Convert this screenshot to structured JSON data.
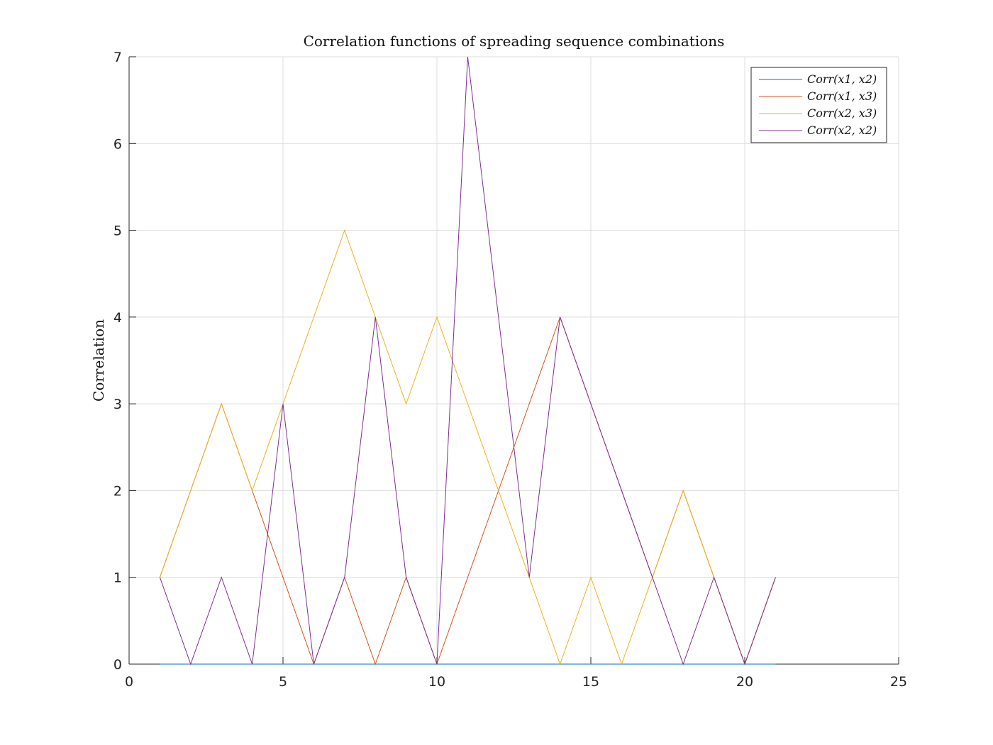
{
  "chart_data": {
    "type": "line",
    "title": "Correlation functions of spreading sequence combinations",
    "xlabel": "",
    "ylabel": "Correlation",
    "xlim": [
      0,
      25
    ],
    "ylim": [
      0,
      7
    ],
    "xticks": [
      0,
      5,
      10,
      15,
      20,
      25
    ],
    "yticks": [
      0,
      1,
      2,
      3,
      4,
      5,
      6,
      7
    ],
    "grid": true,
    "legend_position": "top-right",
    "x": [
      1,
      2,
      3,
      4,
      5,
      6,
      7,
      8,
      9,
      10,
      11,
      12,
      13,
      14,
      15,
      16,
      17,
      18,
      19,
      20,
      21
    ],
    "series": [
      {
        "name": "Corr(x1, x2)",
        "color": "#0072BD",
        "values": [
          0,
          0,
          0,
          0,
          0,
          0,
          0,
          0,
          0,
          0,
          0,
          0,
          0,
          0,
          0,
          0,
          0,
          0,
          0,
          0,
          0
        ]
      },
      {
        "name": "Corr(x1, x3)",
        "color": "#D95319",
        "values": [
          1,
          2,
          3,
          2,
          1,
          0,
          1,
          0,
          1,
          0,
          1,
          2,
          3,
          4,
          3,
          2,
          1,
          2,
          1,
          0,
          1
        ]
      },
      {
        "name": "Corr(x2, x3)",
        "color": "#EDB120",
        "values": [
          1,
          2,
          3,
          2,
          3,
          4,
          5,
          4,
          3,
          4,
          3,
          2,
          1,
          0,
          1,
          0,
          1,
          2,
          1,
          0,
          1
        ]
      },
      {
        "name": "Corr(x2, x2)",
        "color": "#7E2F8E",
        "values": [
          1,
          0,
          1,
          0,
          3,
          0,
          1,
          4,
          1,
          0,
          7,
          4,
          1,
          4,
          3,
          2,
          1,
          0,
          1,
          0,
          1
        ]
      }
    ]
  }
}
